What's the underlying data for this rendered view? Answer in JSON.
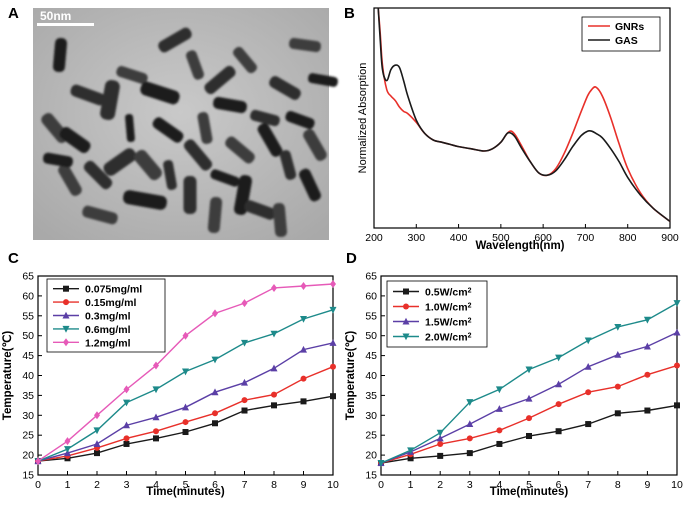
{
  "panels": {
    "a": {
      "letter": "A",
      "scale_bar": "50nm"
    },
    "b": {
      "letter": "B"
    },
    "c": {
      "letter": "C"
    },
    "d": {
      "letter": "D"
    }
  },
  "chart_data": [
    {
      "id": "b",
      "type": "line",
      "title": "",
      "xlabel": "Wavelength(nm)",
      "ylabel": "Normalized Absorption",
      "xlim": [
        200,
        900
      ],
      "ylim": [
        0,
        1
      ],
      "xticks": [
        200,
        300,
        400,
        500,
        600,
        700,
        800,
        900
      ],
      "yticks": [],
      "legend": "top-right",
      "series": [
        {
          "name": "GNRs",
          "color": "#e8302a",
          "x": [
            210,
            215,
            220,
            230,
            240,
            250,
            260,
            270,
            280,
            300,
            320,
            340,
            360,
            380,
            400,
            430,
            460,
            480,
            500,
            515,
            525,
            535,
            550,
            570,
            590,
            610,
            630,
            650,
            670,
            690,
            705,
            715,
            725,
            740,
            760,
            780,
            800,
            830,
            860,
            900
          ],
          "y": [
            1.0,
            0.88,
            0.74,
            0.63,
            0.6,
            0.58,
            0.55,
            0.53,
            0.52,
            0.48,
            0.43,
            0.4,
            0.39,
            0.38,
            0.37,
            0.36,
            0.35,
            0.36,
            0.39,
            0.43,
            0.44,
            0.42,
            0.37,
            0.3,
            0.25,
            0.24,
            0.27,
            0.34,
            0.43,
            0.53,
            0.6,
            0.63,
            0.64,
            0.6,
            0.5,
            0.38,
            0.27,
            0.16,
            0.09,
            0.03
          ]
        },
        {
          "name": "GAS",
          "color": "#1a1a1a",
          "x": [
            210,
            215,
            220,
            230,
            240,
            250,
            260,
            270,
            280,
            300,
            320,
            340,
            360,
            380,
            400,
            430,
            460,
            480,
            500,
            515,
            525,
            535,
            550,
            570,
            590,
            610,
            630,
            650,
            670,
            690,
            705,
            715,
            725,
            740,
            760,
            780,
            800,
            830,
            860,
            900
          ],
          "y": [
            1.0,
            0.85,
            0.72,
            0.67,
            0.72,
            0.74,
            0.73,
            0.67,
            0.6,
            0.49,
            0.43,
            0.4,
            0.39,
            0.38,
            0.37,
            0.36,
            0.35,
            0.36,
            0.39,
            0.43,
            0.43,
            0.41,
            0.36,
            0.3,
            0.25,
            0.24,
            0.26,
            0.31,
            0.37,
            0.42,
            0.44,
            0.44,
            0.43,
            0.41,
            0.36,
            0.3,
            0.23,
            0.15,
            0.09,
            0.03
          ]
        }
      ]
    },
    {
      "id": "c",
      "type": "line",
      "title": "",
      "xlabel": "Time(minutes)",
      "ylabel": "Temperature(℃)",
      "xlim": [
        0,
        10
      ],
      "ylim": [
        15,
        65
      ],
      "xticks": [
        0,
        1,
        2,
        3,
        4,
        5,
        6,
        7,
        8,
        9,
        10
      ],
      "yticks": [
        15,
        20,
        25,
        30,
        35,
        40,
        45,
        50,
        55,
        60,
        65
      ],
      "legend": "top-left",
      "x": [
        0,
        1,
        2,
        3,
        4,
        5,
        6,
        7,
        8,
        9,
        10
      ],
      "series": [
        {
          "name": "0.075mg/ml",
          "color": "#1a1a1a",
          "marker": "square",
          "values": [
            18.5,
            19.2,
            20.5,
            22.8,
            24.2,
            25.8,
            28.0,
            31.2,
            32.5,
            33.5,
            34.8
          ]
        },
        {
          "name": "0.15mg/ml",
          "color": "#e8302a",
          "marker": "circle",
          "values": [
            18.5,
            19.8,
            21.8,
            24.2,
            26.0,
            28.3,
            30.5,
            33.8,
            35.2,
            39.2,
            42.2
          ]
        },
        {
          "name": "0.3mg/ml",
          "color": "#5b3fa6",
          "marker": "triangle",
          "values": [
            18.5,
            20.5,
            22.8,
            27.5,
            29.5,
            32.0,
            35.8,
            38.2,
            41.8,
            46.5,
            48.2
          ]
        },
        {
          "name": "0.6mg/ml",
          "color": "#1d8a8a",
          "marker": "tri-down",
          "values": [
            18.5,
            21.5,
            26.2,
            33.2,
            36.5,
            41.0,
            44.0,
            48.2,
            50.5,
            54.2,
            56.5
          ]
        },
        {
          "name": "1.2mg/ml",
          "color": "#e65ab8",
          "marker": "diamond",
          "values": [
            18.5,
            23.5,
            30.0,
            36.5,
            42.5,
            50.0,
            55.6,
            58.2,
            62.0,
            62.5,
            63.0
          ]
        }
      ]
    },
    {
      "id": "d",
      "type": "line",
      "title": "",
      "xlabel": "Time(minutes)",
      "ylabel": "Temperature(℃)",
      "xlim": [
        0,
        10
      ],
      "ylim": [
        15,
        65
      ],
      "xticks": [
        0,
        1,
        2,
        3,
        4,
        5,
        6,
        7,
        8,
        9,
        10
      ],
      "yticks": [
        15,
        20,
        25,
        30,
        35,
        40,
        45,
        50,
        55,
        60,
        65
      ],
      "legend": "top-left",
      "x": [
        0,
        1,
        2,
        3,
        4,
        5,
        6,
        7,
        8,
        9,
        10
      ],
      "series": [
        {
          "name": "0.5W/cm",
          "sup": "2",
          "color": "#1a1a1a",
          "marker": "square",
          "values": [
            18.0,
            19.2,
            19.8,
            20.5,
            22.8,
            24.8,
            26.0,
            27.8,
            30.5,
            31.2,
            32.5
          ]
        },
        {
          "name": "1.0W/cm",
          "sup": "2",
          "color": "#e8302a",
          "marker": "circle",
          "values": [
            18.0,
            20.2,
            22.8,
            24.2,
            26.2,
            29.3,
            32.8,
            35.8,
            37.2,
            40.2,
            42.5
          ]
        },
        {
          "name": "1.5W/cm",
          "sup": "2",
          "color": "#5b3fa6",
          "marker": "triangle",
          "values": [
            18.0,
            20.8,
            24.2,
            27.8,
            31.6,
            34.2,
            37.8,
            42.2,
            45.2,
            47.3,
            50.8
          ]
        },
        {
          "name": "2.0W/cm",
          "sup": "2",
          "color": "#1d8a8a",
          "marker": "tri-down",
          "values": [
            18.0,
            21.2,
            25.6,
            33.3,
            36.5,
            41.5,
            44.5,
            48.8,
            52.2,
            54.0,
            58.2
          ]
        }
      ]
    }
  ]
}
